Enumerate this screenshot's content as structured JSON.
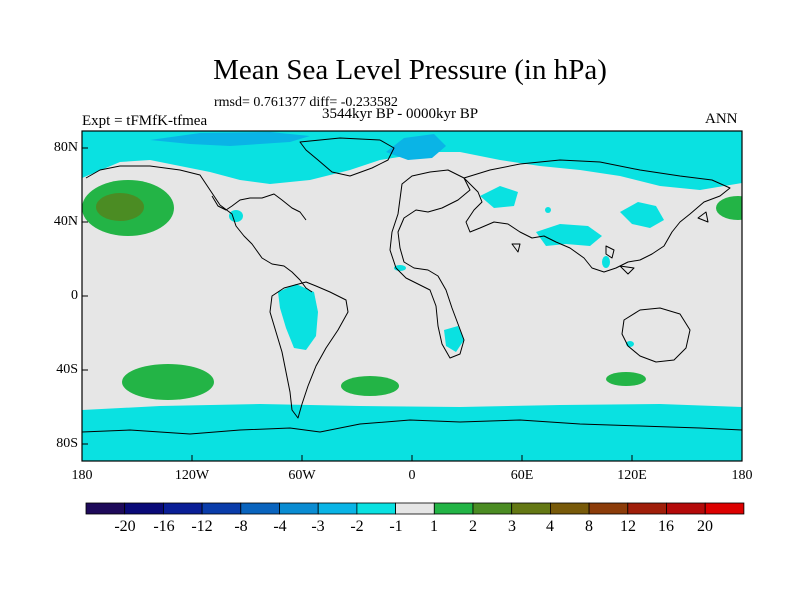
{
  "header": {
    "title": "Mean Sea Level Pressure (in hPa)",
    "stats": "rmsd= 0.761377 diff= -0.233582",
    "experiment": "Expt = tFMfK-tfmea",
    "period": "3544kyr BP - 0000kyr BP",
    "season": "ANN"
  },
  "axes": {
    "lat_ticks": [
      "80N",
      "40N",
      "0",
      "40S",
      "80S"
    ],
    "lon_ticks": [
      "180",
      "120W",
      "60W",
      "0",
      "60E",
      "120E",
      "180"
    ]
  },
  "colorbar": {
    "colors": [
      "#1e0a5a",
      "#0a0a78",
      "#0a1e96",
      "#0a3caa",
      "#0a64be",
      "#0a8cd2",
      "#0ab4e6",
      "#0ae1e1",
      "#e6e6e6",
      "#23b446",
      "#4b8c23",
      "#647814",
      "#785a0a",
      "#8c3c0a",
      "#a01e0a",
      "#b40a0a",
      "#dc0000"
    ],
    "labels": [
      "-20",
      "-16",
      "-12",
      "-8",
      "-4",
      "-3",
      "-2",
      "-1",
      "1",
      "2",
      "3",
      "4",
      "8",
      "12",
      "16",
      "20"
    ]
  }
}
